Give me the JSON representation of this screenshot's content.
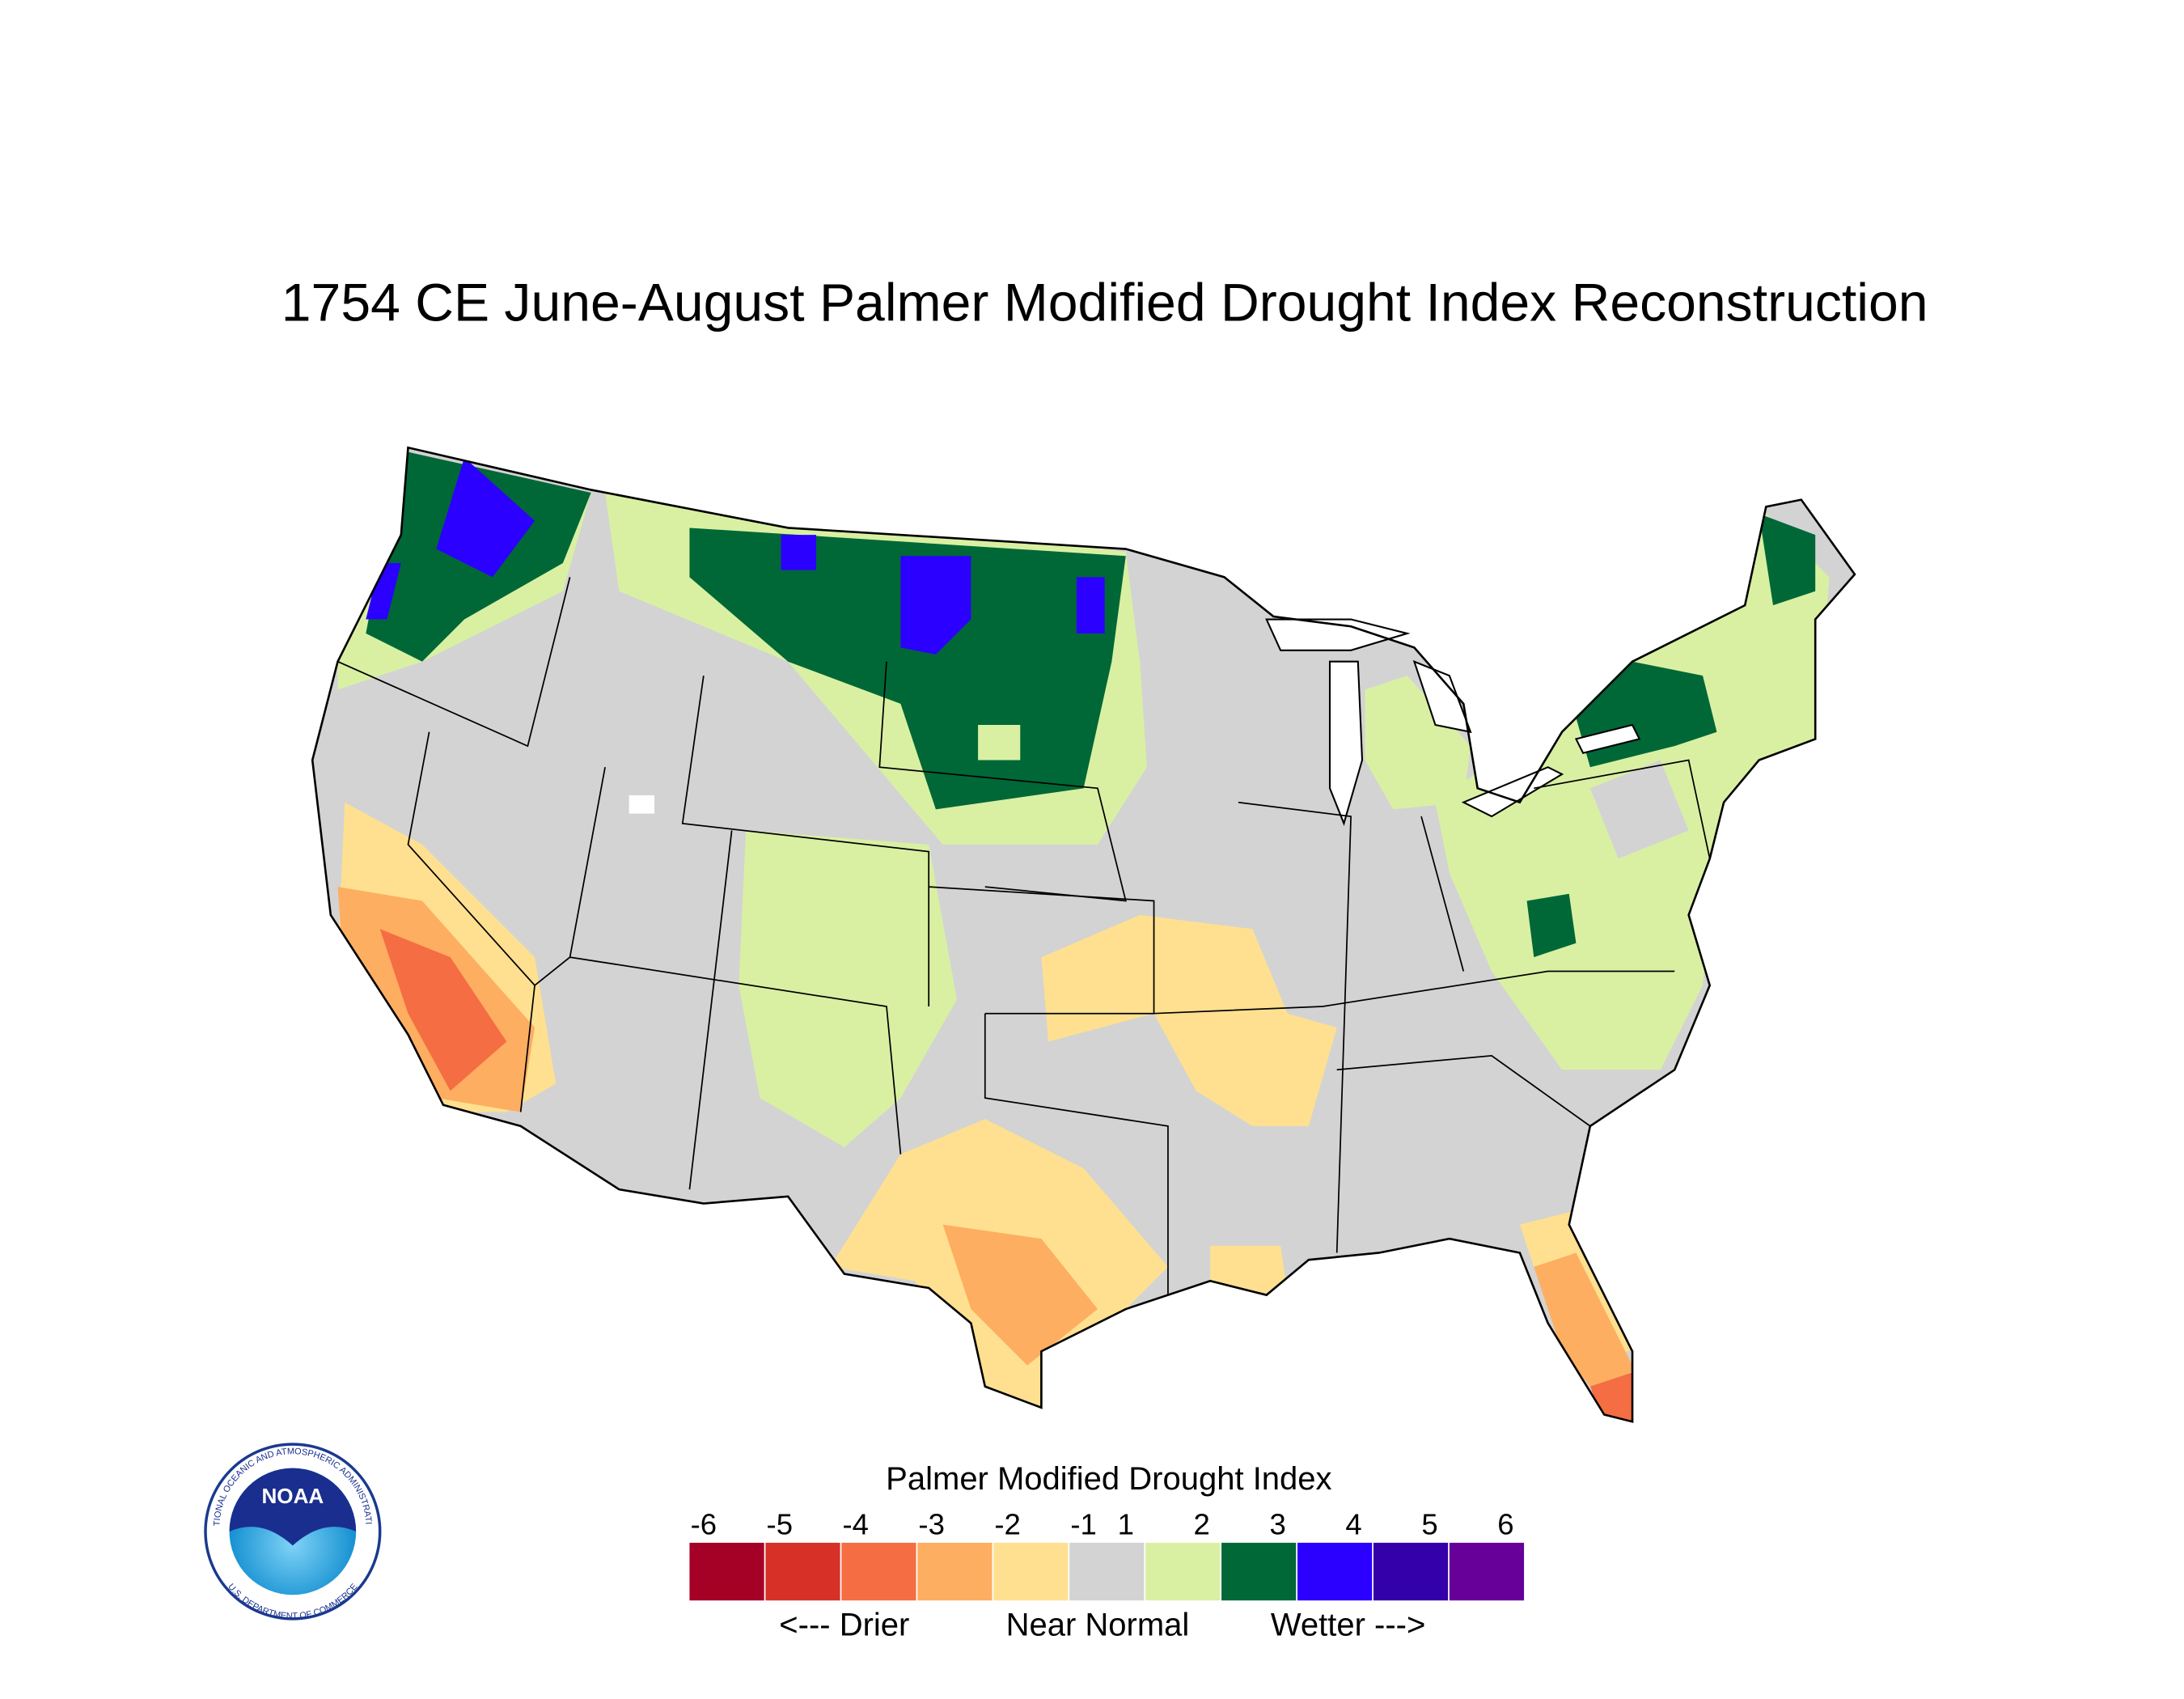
{
  "title": "1754 CE  June-August  Palmer Modified Drought Index Reconstruction",
  "legend": {
    "title": "Palmer Modified Drought Index",
    "ticks": [
      -6,
      -5,
      -4,
      -3,
      -2,
      -1,
      1,
      2,
      3,
      4,
      5,
      6
    ],
    "colors": [
      "#a50026",
      "#d73027",
      "#f46d43",
      "#fdae61",
      "#fee090",
      "#d3d3d3",
      "#d9f0a3",
      "#006837",
      "#2b00ff",
      "#3300aa",
      "#660099"
    ],
    "labels": [
      "<--- Drier",
      "Near Normal",
      "Wetter --->"
    ]
  },
  "logo": {
    "text": "NOAA",
    "ring_top": "NATIONAL OCEANIC AND ATMOSPHERIC ADMINISTRATION",
    "ring_bottom": "U.S. DEPARTMENT OF COMMERCE"
  }
}
